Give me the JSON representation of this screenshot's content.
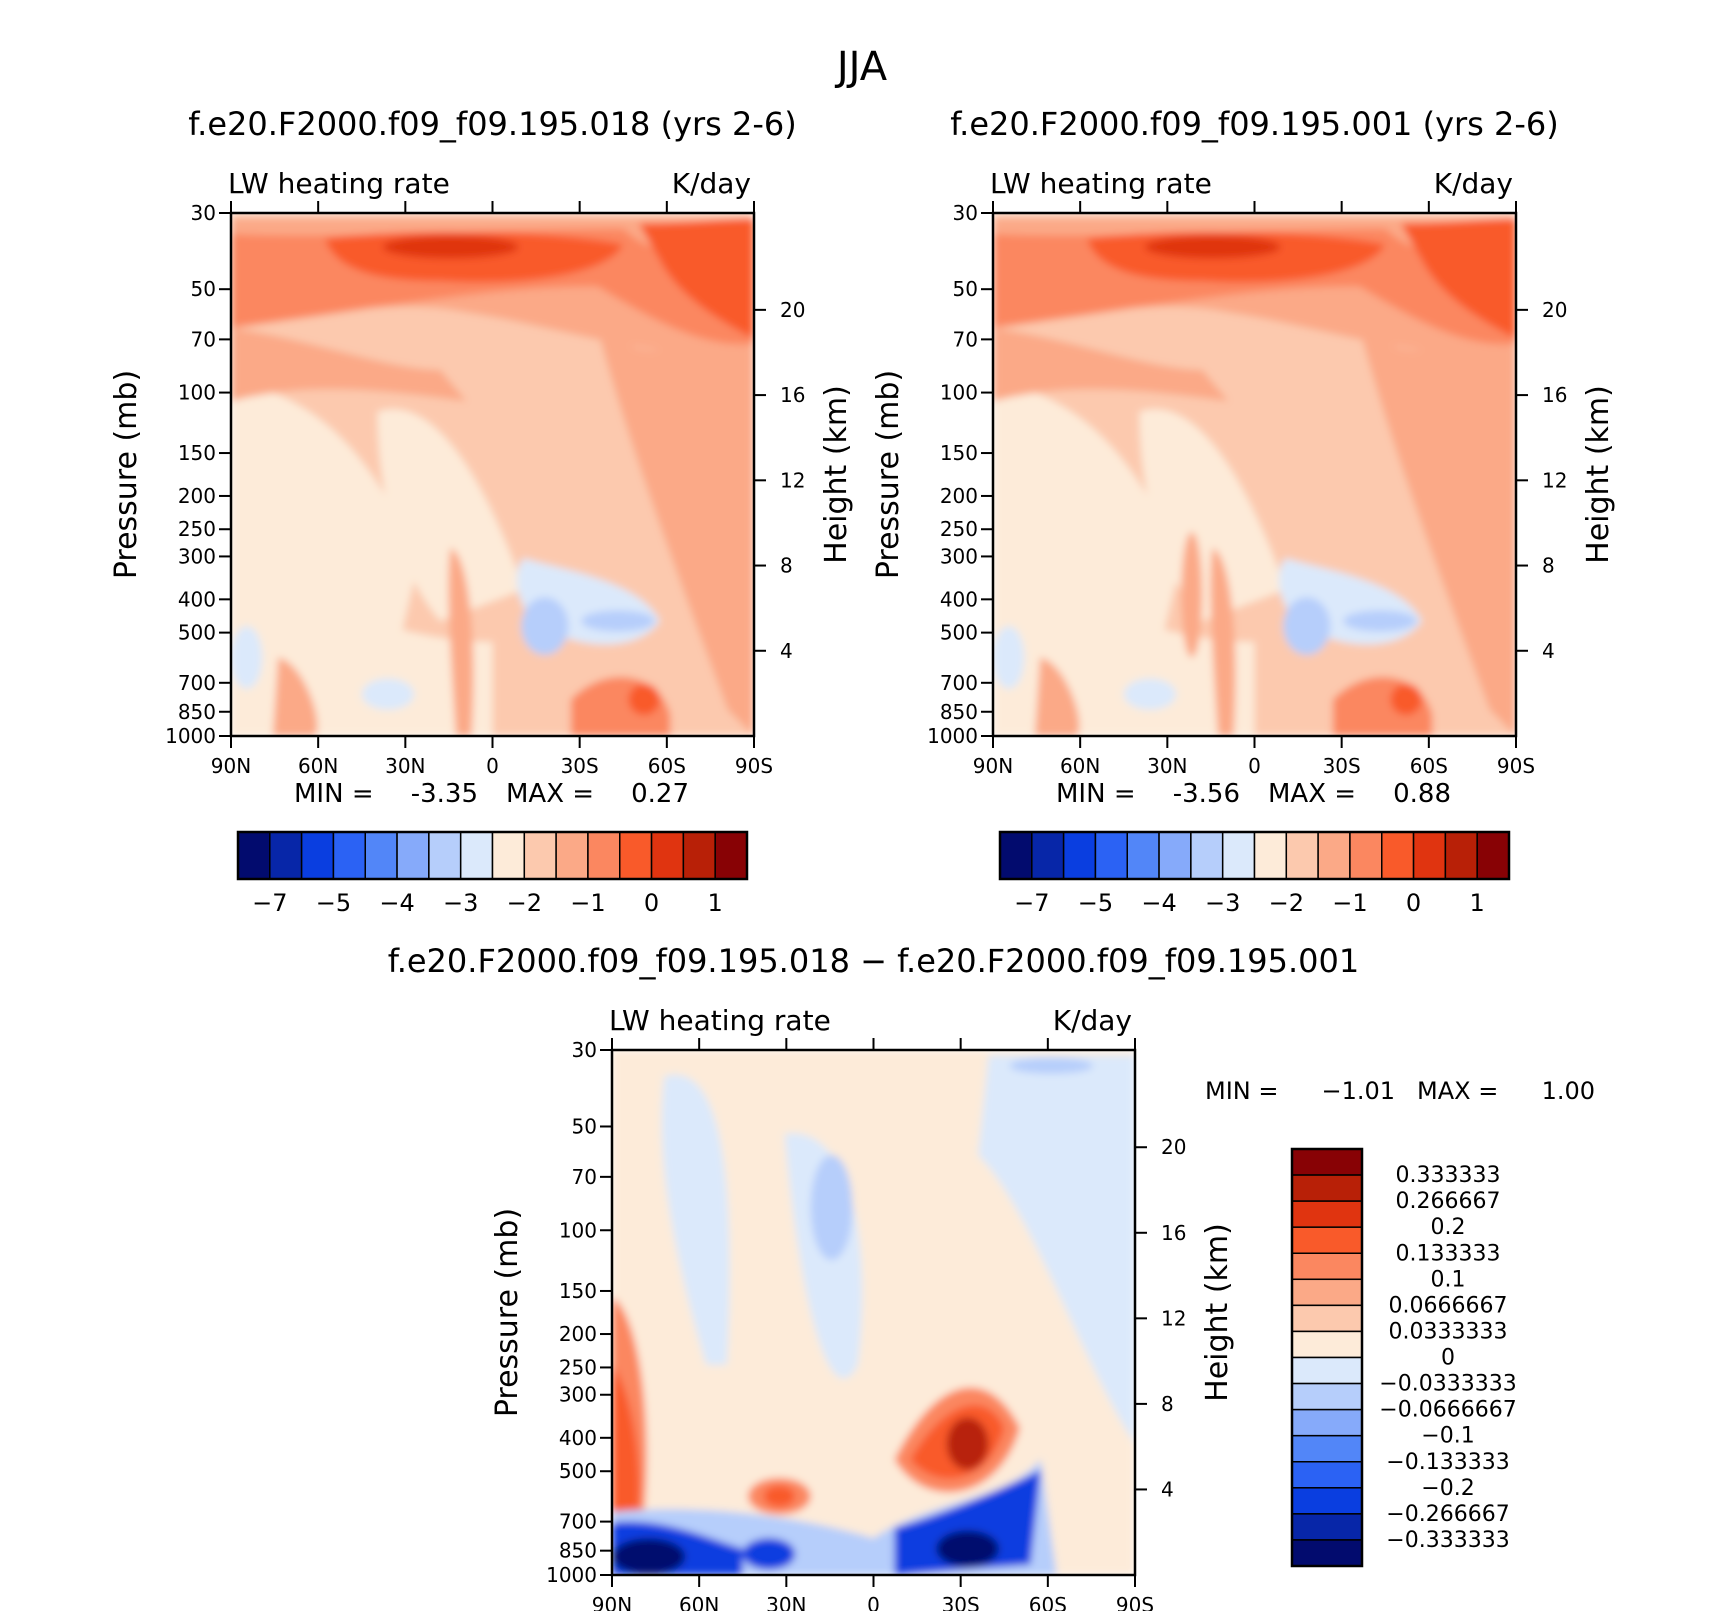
{
  "figure": {
    "title": "JJA"
  },
  "chart_data": [
    {
      "type": "heatmap",
      "title": "f.e20.F2000.f09_f09.195.018 (yrs 2-6)",
      "left_label": "LW heating rate",
      "right_label": "K/day",
      "ylabel": "Pressure (mb)",
      "ylabel_right": "Height (km)",
      "x_ticks": [
        "90N",
        "60N",
        "30N",
        "0",
        "30S",
        "60S",
        "90S"
      ],
      "y_ticks": [
        30,
        50,
        70,
        100,
        150,
        200,
        250,
        300,
        400,
        500,
        700,
        850,
        1000
      ],
      "y_ticks_right": [
        20,
        16,
        12,
        8,
        4
      ],
      "ylim": [
        1000,
        30
      ],
      "y_scale": "log",
      "stats": {
        "min_label": "MIN =",
        "min": "-3.35",
        "max_label": "MAX =",
        "max": "0.27"
      },
      "colorbar": {
        "orientation": "horizontal",
        "colors": [
          "#020b6e",
          "#0726a8",
          "#0a3ee0",
          "#2b62f4",
          "#5286f8",
          "#86aafa",
          "#b6cefb",
          "#dbe9fb",
          "#fdebd9",
          "#fcc9ae",
          "#fba987",
          "#fb8760",
          "#f95a2a",
          "#e03410",
          "#b82007",
          "#880205"
        ],
        "tick_labels": [
          "-7",
          "-5",
          "-4",
          "-3",
          "-2",
          "-1",
          "0",
          "1"
        ]
      }
    },
    {
      "type": "heatmap",
      "title": "f.e20.F2000.f09_f09.195.001 (yrs 2-6)",
      "left_label": "LW heating rate",
      "right_label": "K/day",
      "ylabel": "Pressure (mb)",
      "ylabel_right": "Height (km)",
      "x_ticks": [
        "90N",
        "60N",
        "30N",
        "0",
        "30S",
        "60S",
        "90S"
      ],
      "y_ticks": [
        30,
        50,
        70,
        100,
        150,
        200,
        250,
        300,
        400,
        500,
        700,
        850,
        1000
      ],
      "y_ticks_right": [
        20,
        16,
        12,
        8,
        4
      ],
      "ylim": [
        1000,
        30
      ],
      "y_scale": "log",
      "stats": {
        "min_label": "MIN =",
        "min": "-3.56",
        "max_label": "MAX =",
        "max": "0.88"
      },
      "colorbar": {
        "orientation": "horizontal",
        "colors": [
          "#020b6e",
          "#0726a8",
          "#0a3ee0",
          "#2b62f4",
          "#5286f8",
          "#86aafa",
          "#b6cefb",
          "#dbe9fb",
          "#fdebd9",
          "#fcc9ae",
          "#fba987",
          "#fb8760",
          "#f95a2a",
          "#e03410",
          "#b82007",
          "#880205"
        ],
        "tick_labels": [
          "-7",
          "-5",
          "-4",
          "-3",
          "-2",
          "-1",
          "0",
          "1"
        ]
      }
    },
    {
      "type": "heatmap",
      "title": "f.e20.F2000.f09_f09.195.018 − f.e20.F2000.f09_f09.195.001",
      "left_label": "LW heating rate",
      "right_label": "K/day",
      "ylabel": "Pressure (mb)",
      "ylabel_right": "Height (km)",
      "x_ticks": [
        "90N",
        "60N",
        "30N",
        "0",
        "30S",
        "60S",
        "90S"
      ],
      "y_ticks": [
        30,
        50,
        70,
        100,
        150,
        200,
        250,
        300,
        400,
        500,
        700,
        850,
        1000
      ],
      "y_ticks_right": [
        20,
        16,
        12,
        8,
        4
      ],
      "ylim": [
        1000,
        30
      ],
      "y_scale": "log",
      "stats": {
        "min_label": "MIN =",
        "min": "−1.01",
        "max_label": "MAX =",
        "max": "1.00"
      },
      "colorbar": {
        "orientation": "vertical",
        "colors": [
          "#020b6e",
          "#0726a8",
          "#0a3ee0",
          "#2b62f4",
          "#5286f8",
          "#86aafa",
          "#b6cefb",
          "#dbe9fb",
          "#fdebd9",
          "#fcc9ae",
          "#fba987",
          "#fb8760",
          "#f95a2a",
          "#e03410",
          "#b82007",
          "#880205"
        ],
        "tick_labels": [
          "0.333333",
          "0.266667",
          "0.2",
          "0.133333",
          "0.1",
          "0.0666667",
          "0.0333333",
          "0",
          "−0.0333333",
          "−0.0666667",
          "−0.1",
          "−0.133333",
          "−0.2",
          "−0.266667",
          "−0.333333"
        ]
      }
    }
  ]
}
